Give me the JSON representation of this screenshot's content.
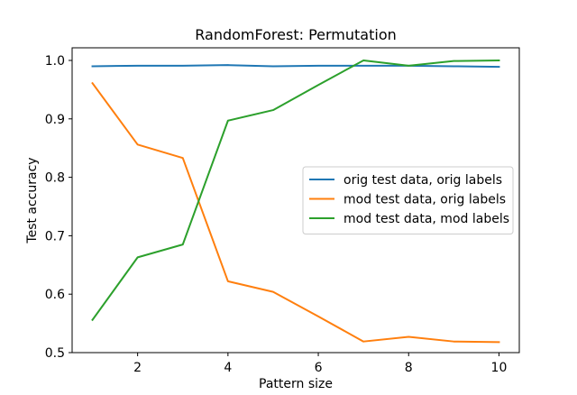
{
  "chart_data": {
    "type": "line",
    "title": "RandomForest: Permutation",
    "xlabel": "Pattern size",
    "ylabel": "Test accuracy",
    "x": [
      1,
      2,
      3,
      4,
      5,
      6,
      7,
      8,
      9,
      10
    ],
    "xlim": [
      0.55,
      10.45
    ],
    "ylim": [
      0.5,
      1.0216
    ],
    "xticks": [
      2,
      4,
      6,
      8,
      10
    ],
    "xtick_labels": [
      "2",
      "4",
      "6",
      "8",
      "10"
    ],
    "yticks": [
      0.5,
      0.6,
      0.7,
      0.8,
      0.9,
      1.0
    ],
    "ytick_labels": [
      "0.5",
      "0.6",
      "0.7",
      "0.8",
      "0.9",
      "1.0"
    ],
    "grid": false,
    "legend_position": "center-right",
    "series": [
      {
        "name": "orig test data, orig labels",
        "color": "#1f77b4",
        "values": [
          0.99,
          0.991,
          0.991,
          0.992,
          0.99,
          0.991,
          0.991,
          0.991,
          0.99,
          0.989
        ]
      },
      {
        "name": "mod test data, orig labels",
        "color": "#ff7f0e",
        "values": [
          0.961,
          0.856,
          0.833,
          0.622,
          0.604,
          0.562,
          0.519,
          0.527,
          0.519,
          0.518
        ]
      },
      {
        "name": "mod test data, mod labels",
        "color": "#2ca02c",
        "values": [
          0.556,
          0.663,
          0.685,
          0.897,
          0.915,
          0.958,
          1.0,
          0.991,
          0.999,
          1.0
        ]
      }
    ]
  }
}
